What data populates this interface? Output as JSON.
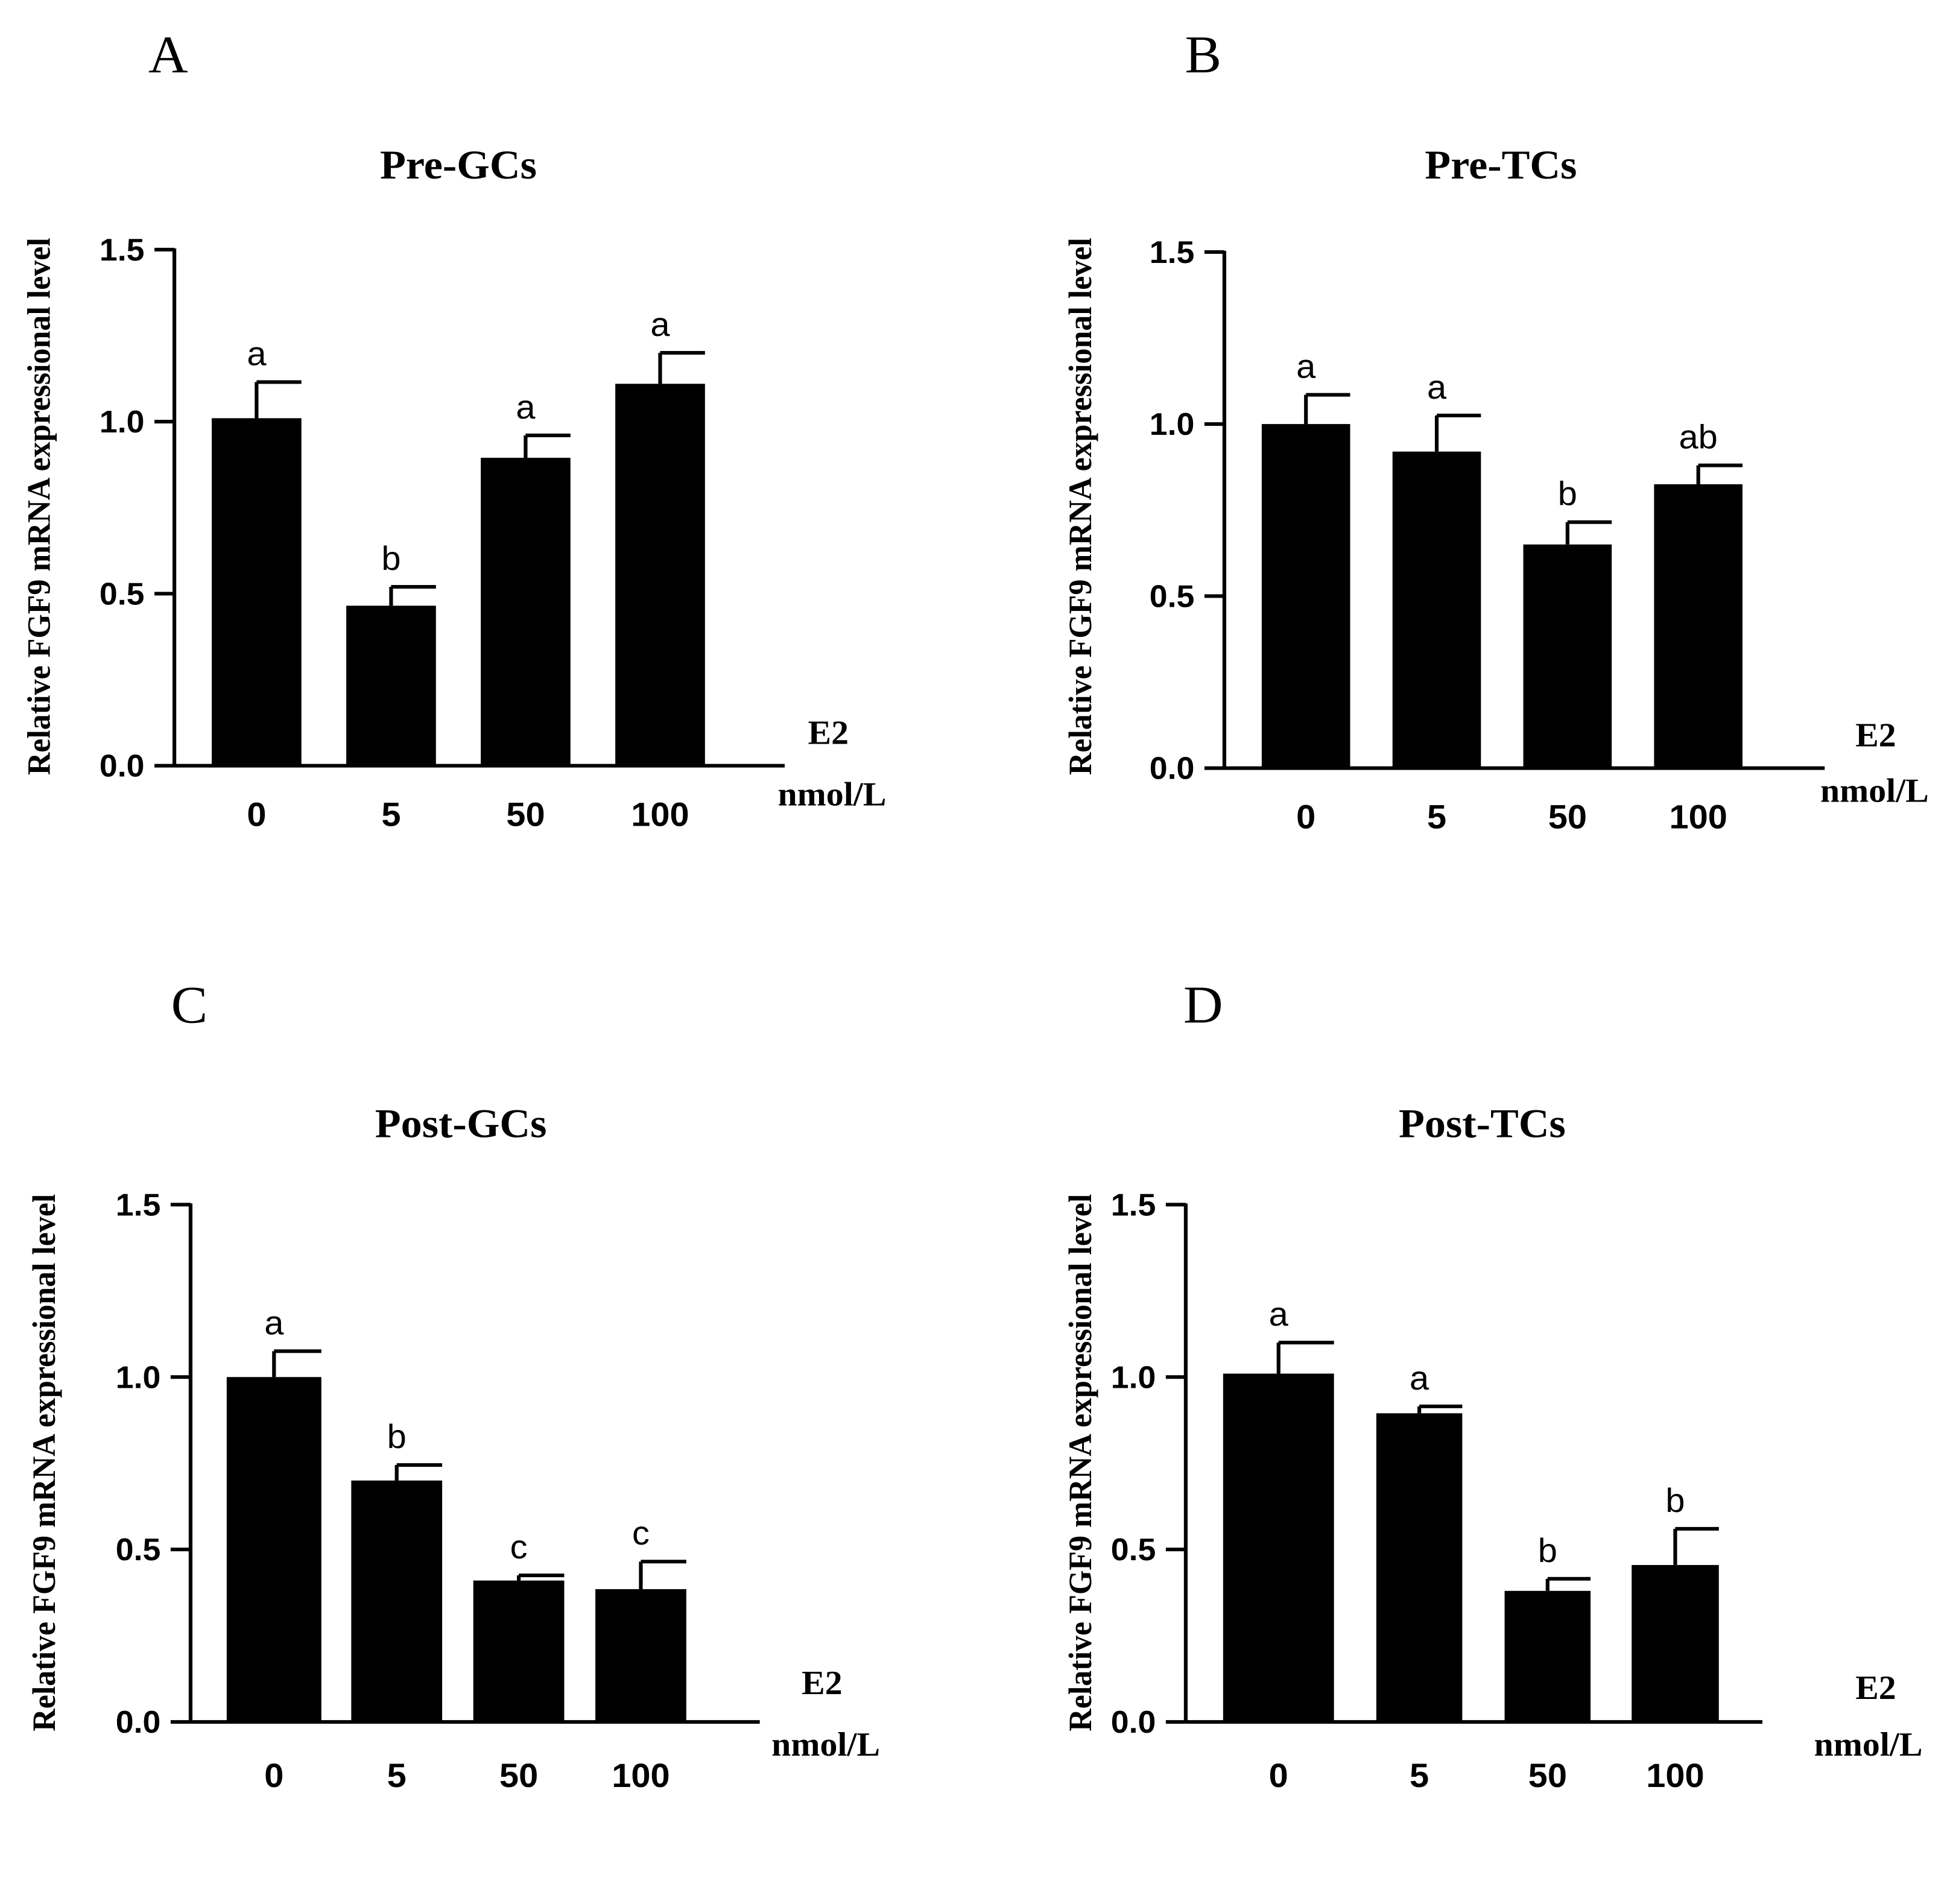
{
  "figure": {
    "bar_color": "#000000",
    "axis_color": "#000000",
    "background": "#ffffff"
  },
  "chart_data": [
    {
      "panel_label": "A",
      "type": "bar",
      "title": "Pre-GCs",
      "ylabel": "Relative FGF9 mRNA expressional level",
      "xlabel": [
        "E2",
        "nmol/L"
      ],
      "ylim": [
        0,
        1.5
      ],
      "yticks": [
        "0.0",
        "0.5",
        "1.0",
        "1.5"
      ],
      "categories": [
        "0",
        "5",
        "50",
        "100"
      ],
      "values": [
        1.01,
        0.465,
        0.895,
        1.11
      ],
      "errors": [
        0.105,
        0.055,
        0.065,
        0.09
      ],
      "significance": [
        "a",
        "b",
        "a",
        "a"
      ]
    },
    {
      "panel_label": "B",
      "type": "bar",
      "title": "Pre-TCs",
      "ylabel": "Relative FGF9 mRNA expressional level",
      "xlabel": [
        "E2",
        "nmol/L"
      ],
      "ylim": [
        0,
        1.5
      ],
      "yticks": [
        "0.0",
        "0.5",
        "1.0",
        "1.5"
      ],
      "categories": [
        "0",
        "5",
        "50",
        "100"
      ],
      "values": [
        1.0,
        0.92,
        0.65,
        0.825
      ],
      "errors": [
        0.085,
        0.105,
        0.065,
        0.055
      ],
      "significance": [
        "a",
        "a",
        "b",
        "ab"
      ]
    },
    {
      "panel_label": "C",
      "type": "bar",
      "title": "Post-GCs",
      "ylabel": "Relative FGF9 mRNA expressional level",
      "xlabel": [
        "E2",
        "nmol/L"
      ],
      "ylim": [
        0,
        1.5
      ],
      "yticks": [
        "0.0",
        "0.5",
        "1.0",
        "1.5"
      ],
      "categories": [
        "0",
        "5",
        "50",
        "100"
      ],
      "values": [
        1.0,
        0.7,
        0.41,
        0.385
      ],
      "errors": [
        0.075,
        0.045,
        0.015,
        0.08
      ],
      "significance": [
        "a",
        "b",
        "c",
        "c"
      ]
    },
    {
      "panel_label": "D",
      "type": "bar",
      "title": "Post-TCs",
      "ylabel": "Relative FGF9 mRNA expressional level",
      "xlabel": [
        "E2",
        "nmol/L"
      ],
      "ylim": [
        0,
        1.5
      ],
      "yticks": [
        "0.0",
        "0.5",
        "1.0",
        "1.5"
      ],
      "categories": [
        "0",
        "5",
        "50",
        "100"
      ],
      "values": [
        1.01,
        0.895,
        0.38,
        0.455
      ],
      "errors": [
        0.09,
        0.02,
        0.035,
        0.105
      ],
      "significance": [
        "a",
        "a",
        "b",
        "b"
      ]
    }
  ]
}
